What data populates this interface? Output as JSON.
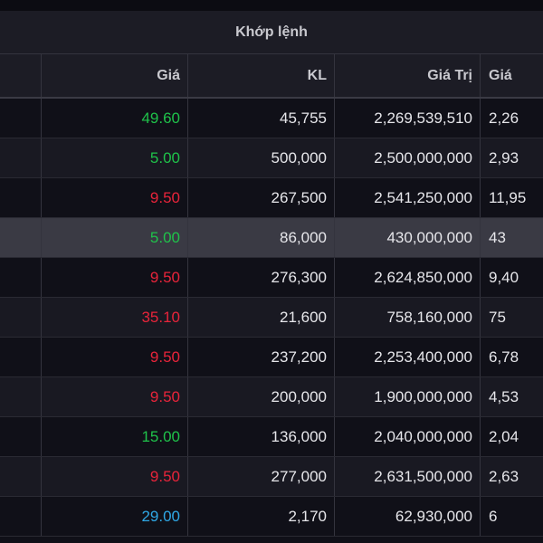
{
  "board": {
    "group_title": "Khớp lệnh",
    "columns": [
      "",
      "Giá",
      "KL",
      "Giá Trị",
      "Giá"
    ],
    "rows": [
      {
        "price": "49.60",
        "price_color": "#1fc24a",
        "volume": "45,755",
        "value": "2,269,539,510",
        "last": "2,26",
        "highlight": false
      },
      {
        "price": "5.00",
        "price_color": "#1fc24a",
        "volume": "500,000",
        "value": "2,500,000,000",
        "last": "2,93",
        "highlight": false
      },
      {
        "price": "9.50",
        "price_color": "#e8243a",
        "volume": "267,500",
        "value": "2,541,250,000",
        "last": "11,95",
        "highlight": false
      },
      {
        "price": "5.00",
        "price_color": "#1fc24a",
        "volume": "86,000",
        "value": "430,000,000",
        "last": "43",
        "highlight": true
      },
      {
        "price": "9.50",
        "price_color": "#e8243a",
        "volume": "276,300",
        "value": "2,624,850,000",
        "last": "9,40",
        "highlight": false
      },
      {
        "price": "35.10",
        "price_color": "#e8243a",
        "volume": "21,600",
        "value": "758,160,000",
        "last": "75",
        "highlight": false
      },
      {
        "price": "9.50",
        "price_color": "#e8243a",
        "volume": "237,200",
        "value": "2,253,400,000",
        "last": "6,78",
        "highlight": false
      },
      {
        "price": "9.50",
        "price_color": "#e8243a",
        "volume": "200,000",
        "value": "1,900,000,000",
        "last": "4,53",
        "highlight": false
      },
      {
        "price": "15.00",
        "price_color": "#1fc24a",
        "volume": "136,000",
        "value": "2,040,000,000",
        "last": "2,04",
        "highlight": false
      },
      {
        "price": "9.50",
        "price_color": "#e8243a",
        "volume": "277,000",
        "value": "2,631,500,000",
        "last": "2,63",
        "highlight": false
      },
      {
        "price": "29.00",
        "price_color": "#2fa8e6",
        "volume": "2,170",
        "value": "62,930,000",
        "last": "6",
        "highlight": false
      }
    ]
  },
  "colors": {
    "up": "#1fc24a",
    "down": "#e8243a",
    "floor": "#2fa8e6",
    "background": "#101018",
    "header": "#1c1c25",
    "highlight_row": "#3a3a44"
  }
}
